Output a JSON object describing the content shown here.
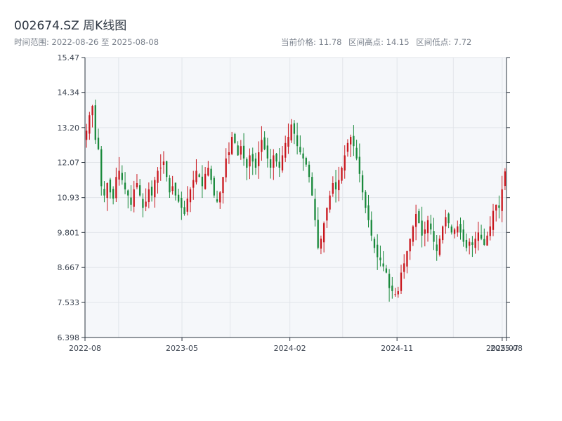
{
  "header": {
    "title": "002674.SZ 周K线图",
    "range_label": "时间范围: 2022-08-26 至 2025-08-08",
    "stats": [
      "当前价格: 11.78",
      "区间高点: 14.15",
      "区间低点: 7.72"
    ]
  },
  "colors": {
    "up": "#c9171e",
    "down": "#1a8a3c",
    "plot_bg": "#f5f7fa",
    "grid": "#e2e5ea",
    "axis": "#2b3440"
  },
  "chart_data": {
    "type": "candlestick",
    "title": "002674.SZ 周K线图",
    "xlim": [
      "2022-08-26",
      "2025-08-08"
    ],
    "ylim": [
      6.398,
      15.47
    ],
    "y_ticks": [
      "6.398",
      "7.533",
      "8.667",
      "9.801",
      "10.93",
      "12.07",
      "13.20",
      "14.34",
      "15.47"
    ],
    "y_tick_values": [
      6.398,
      7.533,
      8.667,
      9.801,
      10.93,
      12.07,
      13.2,
      14.34,
      15.47
    ],
    "x_ticks": [
      "2022-08",
      "2023-05",
      "2024-02",
      "2024-11",
      "2025-07",
      "2025-08"
    ],
    "x_tick_dates": [
      "2022-08-26",
      "2023-05-01",
      "2024-02-01",
      "2024-11-01",
      "2025-07-28",
      "2025-08-08"
    ],
    "grid": true,
    "start_date": "2022-08-26",
    "close_series": [
      13.1,
      13.6,
      13.9,
      12.8,
      12.5,
      11.3,
      11.0,
      11.4,
      11.1,
      10.9,
      11.6,
      11.8,
      11.5,
      11.2,
      11.0,
      10.7,
      11.2,
      11.4,
      11.0,
      10.6,
      10.8,
      11.2,
      11.0,
      11.5,
      11.8,
      11.9,
      12.1,
      11.6,
      11.1,
      11.3,
      11.0,
      10.8,
      10.6,
      10.4,
      10.9,
      11.2,
      11.5,
      11.8,
      11.6,
      11.3,
      11.7,
      11.9,
      11.5,
      11.0,
      10.8,
      11.1,
      11.6,
      12.2,
      12.4,
      12.9,
      12.7,
      12.3,
      12.6,
      12.2,
      11.9,
      12.3,
      12.1,
      11.9,
      12.4,
      12.8,
      12.5,
      12.2,
      11.9,
      12.3,
      12.1,
      11.9,
      12.3,
      12.7,
      12.9,
      13.3,
      13.0,
      12.6,
      12.4,
      12.2,
      12.0,
      11.6,
      11.0,
      10.2,
      9.3,
      9.6,
      10.1,
      10.6,
      11.0,
      11.4,
      11.2,
      11.5,
      11.9,
      12.3,
      12.7,
      12.9,
      12.6,
      12.2,
      11.7,
      11.1,
      10.6,
      10.2,
      9.7,
      9.3,
      9.0,
      8.9,
      8.7,
      8.5,
      8.0,
      7.9,
      7.8,
      7.9,
      8.5,
      8.8,
      9.2,
      9.6,
      10.0,
      10.4,
      10.1,
      9.7,
      9.9,
      10.2,
      9.9,
      9.5,
      9.2,
      9.6,
      10.0,
      10.3,
      10.1,
      9.8,
      9.9,
      10.0,
      9.8,
      9.5,
      9.3,
      9.5,
      9.4,
      9.6,
      9.8,
      9.6,
      9.4,
      9.7,
      10.0,
      10.5,
      10.7,
      10.6,
      11.2,
      11.78
    ]
  }
}
